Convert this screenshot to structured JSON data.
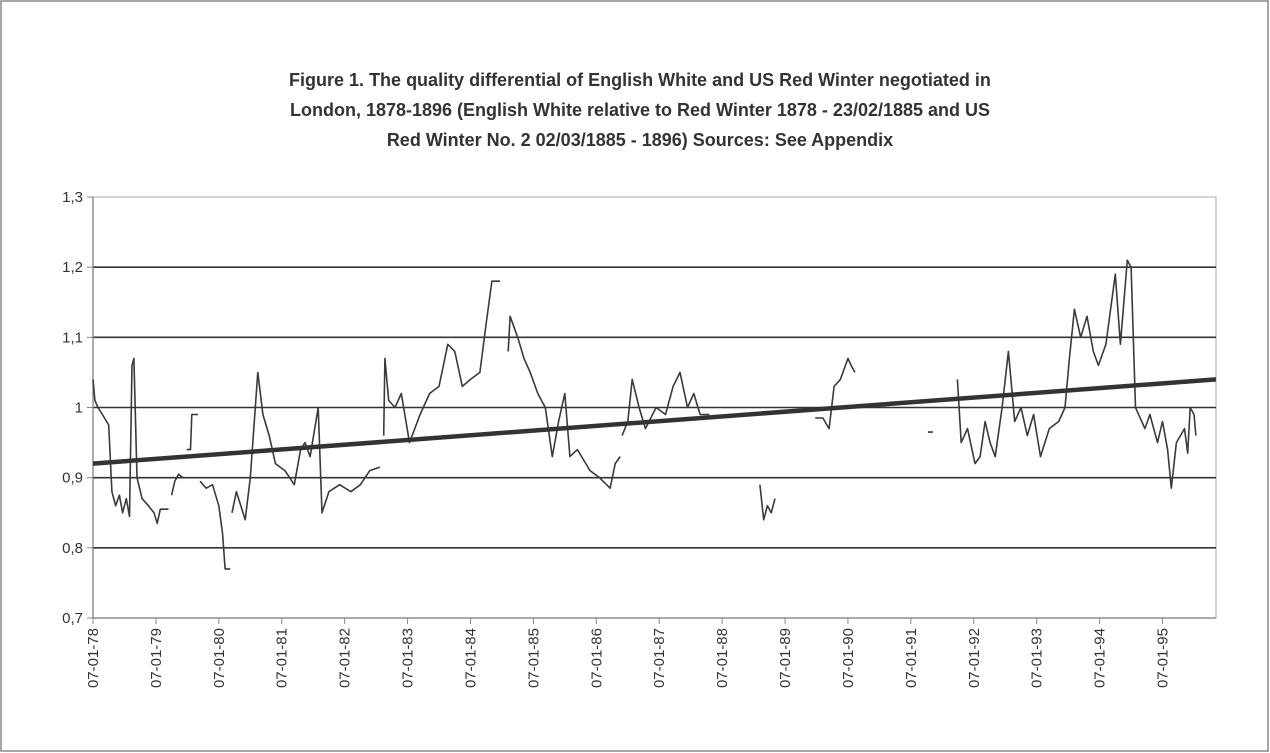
{
  "chart_data": {
    "type": "line",
    "title": [
      "Figure 1. The quality differential of English White and US Red Winter negotiated in",
      "London, 1878-1896 (English White relative to Red Winter 1878 - 23/02/1885 and US",
      "Red Winter No. 2 02/03/1885 - 1896) Sources: See Appendix"
    ],
    "xlim": [
      1878,
      1895.85
    ],
    "xticks": [
      {
        "value": 1878,
        "label": "07-01-78"
      },
      {
        "value": 1879,
        "label": "07-01-79"
      },
      {
        "value": 1880,
        "label": "07-01-80"
      },
      {
        "value": 1881,
        "label": "07-01-81"
      },
      {
        "value": 1882,
        "label": "07-01-82"
      },
      {
        "value": 1883,
        "label": "07-01-83"
      },
      {
        "value": 1884,
        "label": "07-01-84"
      },
      {
        "value": 1885,
        "label": "07-01-85"
      },
      {
        "value": 1886,
        "label": "07-01-86"
      },
      {
        "value": 1887,
        "label": "07-01-87"
      },
      {
        "value": 1888,
        "label": "07-01-88"
      },
      {
        "value": 1889,
        "label": "07-01-89"
      },
      {
        "value": 1890,
        "label": "07-01-90"
      },
      {
        "value": 1891,
        "label": "07-01-91"
      },
      {
        "value": 1892,
        "label": "07-01-92"
      },
      {
        "value": 1893,
        "label": "07-01-93"
      },
      {
        "value": 1894,
        "label": "07-01-94"
      },
      {
        "value": 1895,
        "label": "07-01-95"
      }
    ],
    "ylim": [
      0.7,
      1.3
    ],
    "yticks": [
      {
        "value": 0.7,
        "label": "0,7"
      },
      {
        "value": 0.8,
        "label": "0,8"
      },
      {
        "value": 0.9,
        "label": "0,9"
      },
      1,
      {
        "value": 1.1,
        "label": "1,1"
      },
      {
        "value": 1.2,
        "label": "1,2"
      },
      {
        "value": 1.3,
        "label": "1,3"
      }
    ],
    "grid": true,
    "series": [
      {
        "color": "#3a3a3a",
        "width": 1.6,
        "x": [
          1878.0,
          1878.03,
          1878.08,
          1878.15,
          1878.25,
          1878.3,
          1878.36,
          1878.42,
          1878.47,
          1878.53,
          1878.58,
          1878.62,
          1878.65,
          1878.7,
          1878.78,
          1878.88,
          1878.97,
          1879.02,
          1879.07,
          1879.2,
          null,
          1879.25,
          1879.3,
          1879.36,
          1879.43,
          null,
          1879.49,
          1879.55,
          1879.57,
          1879.67,
          null,
          1879.7,
          1879.8,
          1879.9,
          1880.0,
          1880.06,
          1880.1,
          1880.18,
          null,
          1880.21,
          1880.28,
          1880.35,
          1880.42,
          1880.5,
          1880.62,
          1880.7,
          1880.8,
          1880.9,
          1881.05,
          1881.2,
          1881.3,
          1881.37,
          1881.45,
          1881.58,
          1881.64,
          1881.75,
          1881.92,
          1882.1,
          1882.25,
          1882.4,
          1882.56,
          null,
          1882.62,
          1882.64,
          1882.7,
          1882.8,
          1882.9,
          1883.03,
          1883.2,
          1883.35,
          1883.5,
          1883.64,
          1883.75,
          1883.87,
          1884.0,
          1884.15,
          1884.25,
          1884.34,
          1884.47,
          null,
          1884.6,
          1884.63,
          1884.75,
          1884.85,
          1884.95,
          1885.07,
          1885.19,
          1885.3,
          1885.4,
          1885.5,
          1885.58,
          1885.7,
          1885.9,
          1886.05,
          1886.22,
          1886.3,
          1886.38,
          null,
          1886.41,
          1886.5,
          1886.57,
          1886.68,
          1886.78,
          1886.95,
          1887.1,
          1887.22,
          1887.33,
          1887.45,
          1887.55,
          1887.65,
          1887.8,
          null,
          1888.6,
          1888.66,
          1888.72,
          1888.78,
          1888.84,
          null,
          1889.48,
          1889.6,
          1889.7,
          1889.78,
          1889.88,
          1890.0,
          1890.05,
          1890.11,
          null,
          1891.27,
          1891.35,
          null,
          1891.74,
          1891.8,
          1891.9,
          1892.02,
          1892.1,
          1892.18,
          1892.26,
          1892.34,
          1892.45,
          1892.55,
          1892.65,
          1892.75,
          1892.85,
          1892.95,
          1893.06,
          1893.2,
          1893.35,
          1893.45,
          1893.52,
          1893.6,
          1893.7,
          1893.8,
          1893.9,
          1893.98,
          1894.1,
          1894.25,
          1894.33,
          1894.44,
          1894.5,
          1894.57,
          1894.72,
          1894.8,
          1894.92,
          1895.0,
          1895.08,
          1895.14,
          1895.22,
          1895.35,
          1895.4,
          1895.44,
          1895.5,
          1895.53
        ],
        "values": [
          1.04,
          1.01,
          1.0,
          0.99,
          0.975,
          0.88,
          0.86,
          0.875,
          0.85,
          0.87,
          0.845,
          1.06,
          1.07,
          0.9,
          0.87,
          0.86,
          0.85,
          0.835,
          0.855,
          0.855,
          null,
          0.875,
          0.895,
          0.905,
          0.9,
          null,
          0.94,
          0.94,
          0.99,
          0.99,
          null,
          0.895,
          0.885,
          0.89,
          0.86,
          0.82,
          0.77,
          0.77,
          null,
          0.85,
          0.88,
          0.86,
          0.84,
          0.9,
          1.05,
          0.99,
          0.96,
          0.92,
          0.91,
          0.89,
          0.94,
          0.95,
          0.93,
          1.0,
          0.85,
          0.88,
          0.89,
          0.88,
          0.89,
          0.91,
          0.915,
          null,
          0.96,
          1.07,
          1.01,
          1.0,
          1.02,
          0.95,
          0.99,
          1.02,
          1.03,
          1.09,
          1.08,
          1.03,
          1.04,
          1.05,
          1.12,
          1.18,
          1.18,
          null,
          1.08,
          1.13,
          1.1,
          1.07,
          1.05,
          1.02,
          1.0,
          0.93,
          0.98,
          1.02,
          0.93,
          0.94,
          0.91,
          0.9,
          0.885,
          0.92,
          0.93,
          null,
          0.96,
          0.98,
          1.04,
          1.0,
          0.97,
          1.0,
          0.99,
          1.03,
          1.05,
          1.0,
          1.02,
          0.99,
          0.99,
          null,
          0.89,
          0.84,
          0.86,
          0.85,
          0.87,
          null,
          0.985,
          0.985,
          0.97,
          1.03,
          1.04,
          1.07,
          1.06,
          1.05,
          null,
          0.965,
          0.965,
          null,
          1.04,
          0.95,
          0.97,
          0.92,
          0.93,
          0.98,
          0.95,
          0.93,
          1.0,
          1.08,
          0.98,
          1.0,
          0.96,
          0.99,
          0.93,
          0.97,
          0.98,
          1.0,
          1.07,
          1.14,
          1.1,
          1.13,
          1.08,
          1.06,
          1.09,
          1.19,
          1.09,
          1.21,
          1.2,
          1.0,
          0.97,
          0.99,
          0.95,
          0.98,
          0.94,
          0.885,
          0.95,
          0.97,
          0.935,
          1.0,
          0.99,
          0.96
        ]
      },
      {
        "color": "#333333",
        "width": 4.5,
        "x": [
          1878,
          1895.85
        ],
        "values": [
          0.92,
          1.04
        ]
      }
    ]
  }
}
